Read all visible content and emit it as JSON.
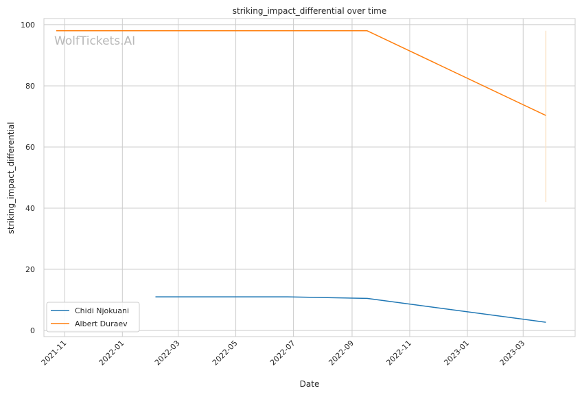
{
  "chart_data": {
    "type": "line",
    "title": "striking_impact_differential over time",
    "xlabel": "Date",
    "ylabel": "striking_impact_differential",
    "watermark": "WolfTickets.AI",
    "ylim": [
      -2,
      102
    ],
    "xlim": [
      "2021-10-10",
      "2023-04-25"
    ],
    "yticks": [
      0,
      20,
      40,
      60,
      80,
      100
    ],
    "xticks": [
      "2021-11",
      "2022-01",
      "2022-03",
      "2022-05",
      "2022-07",
      "2022-09",
      "2022-11",
      "2023-01",
      "2023-03"
    ],
    "grid": true,
    "legend_position": "lower-left",
    "series": [
      {
        "name": "Chidi Njokuani",
        "color": "#1f77b4",
        "points": [
          {
            "x": "2022-02-05",
            "y": 11
          },
          {
            "x": "2022-06-25",
            "y": 11
          },
          {
            "x": "2022-09-17",
            "y": 10.5
          },
          {
            "x": "2023-03-25",
            "y": 2.7
          }
        ]
      },
      {
        "name": "Albert Duraev",
        "color": "#ff7f0e",
        "points": [
          {
            "x": "2021-10-23",
            "y": 98
          },
          {
            "x": "2022-09-17",
            "y": 98
          },
          {
            "x": "2023-03-25",
            "y": 70.3
          }
        ]
      }
    ],
    "annotations": [
      {
        "type": "vertical-band",
        "x": "2023-03-25",
        "y_from": 42,
        "y_to": 98,
        "color": "#fbe3c6"
      }
    ]
  }
}
